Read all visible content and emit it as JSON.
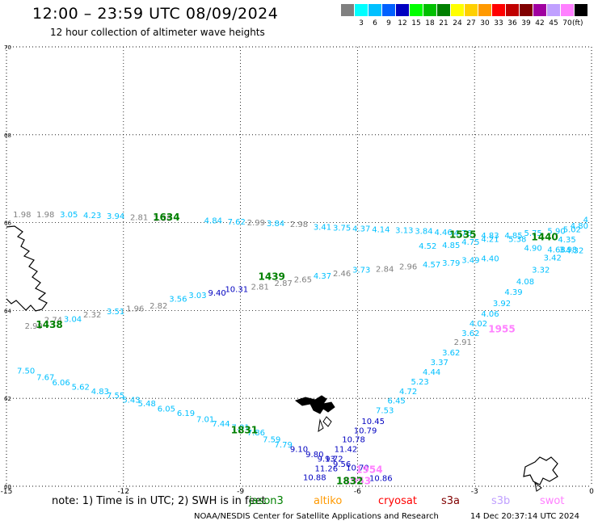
{
  "title": "12:00 – 23:59 UTC 08/09/2024",
  "subtitle": "12 hour collection of altimeter wave heights",
  "color_scale": {
    "unit": "(ft)",
    "steps": [
      {
        "color": "#808080",
        "label": ""
      },
      {
        "color": "#00ffff",
        "label": "3"
      },
      {
        "color": "#00c0ff",
        "label": "6"
      },
      {
        "color": "#0060ff",
        "label": "9"
      },
      {
        "color": "#0000c0",
        "label": "12"
      },
      {
        "color": "#00ff00",
        "label": "15"
      },
      {
        "color": "#00c000",
        "label": "18"
      },
      {
        "color": "#008000",
        "label": "21"
      },
      {
        "color": "#ffff00",
        "label": "24"
      },
      {
        "color": "#ffd000",
        "label": "27"
      },
      {
        "color": "#ff9900",
        "label": "30"
      },
      {
        "color": "#ff0000",
        "label": "33"
      },
      {
        "color": "#c00000",
        "label": "36"
      },
      {
        "color": "#800000",
        "label": "39"
      },
      {
        "color": "#a000a0",
        "label": "42"
      },
      {
        "color": "#c0a0ff",
        "label": "45"
      },
      {
        "color": "#ff80ff",
        "label": "70"
      },
      {
        "color": "#000000",
        "label": ""
      }
    ]
  },
  "axes": {
    "x_ticks": [
      "-15",
      "-12",
      "-9",
      "-6",
      "-3",
      "0"
    ],
    "y_ticks": [
      "70",
      "68",
      "66",
      "64",
      "62",
      "60"
    ]
  },
  "passes": [
    {
      "time": "1634",
      "color": "#008000",
      "lon": -10.9,
      "lat": 66.05
    },
    {
      "time": "1535",
      "color": "#008000",
      "lon": -3.3,
      "lat": 65.65
    },
    {
      "time": "1440",
      "color": "#008000",
      "lon": -1.2,
      "lat": 65.6
    },
    {
      "time": "1439",
      "color": "#008000",
      "lon": -8.2,
      "lat": 64.7
    },
    {
      "time": "1438",
      "color": "#008000",
      "lon": -13.9,
      "lat": 63.6
    },
    {
      "time": "1831",
      "color": "#008000",
      "lon": -8.9,
      "lat": 61.2
    },
    {
      "time": "1955",
      "color": "#ff80ff",
      "lon": -2.3,
      "lat": 63.5
    },
    {
      "time": "1954",
      "color": "#ff80ff",
      "lon": -5.7,
      "lat": 60.3
    },
    {
      "time": "1953",
      "color": "#ff80ff",
      "lon": -6.0,
      "lat": 60.05
    },
    {
      "time": "1832",
      "color": "#008000",
      "lon": -6.2,
      "lat": 60.05
    }
  ],
  "tracks": [
    {
      "name": "track-1634",
      "points": [
        {
          "lon": -14.6,
          "lat": 66.12,
          "v": "1.98",
          "c": "#808080"
        },
        {
          "lon": -14.0,
          "lat": 66.12,
          "v": "1.98",
          "c": "#808080"
        },
        {
          "lon": -13.4,
          "lat": 66.12,
          "v": "3.05",
          "c": "#00c0ff"
        },
        {
          "lon": -12.8,
          "lat": 66.1,
          "v": "4.23",
          "c": "#00c0ff"
        },
        {
          "lon": -12.2,
          "lat": 66.08,
          "v": "3.94",
          "c": "#00c0ff"
        },
        {
          "lon": -11.6,
          "lat": 66.06,
          "v": "2.81",
          "c": "#808080"
        },
        {
          "lon": -11.0,
          "lat": 66.04,
          "v": "2.38",
          "c": "#808080"
        },
        {
          "lon": -9.7,
          "lat": 65.98,
          "v": "4.84",
          "c": "#00c0ff"
        },
        {
          "lon": -9.1,
          "lat": 65.96,
          "v": "7.62",
          "c": "#00c0ff"
        },
        {
          "lon": -8.6,
          "lat": 65.94,
          "v": "2.99",
          "c": "#808080"
        },
        {
          "lon": -8.1,
          "lat": 65.92,
          "v": "3.84",
          "c": "#00c0ff"
        },
        {
          "lon": -7.5,
          "lat": 65.9,
          "v": "2.98",
          "c": "#808080"
        },
        {
          "lon": -6.9,
          "lat": 65.84,
          "v": "3.41",
          "c": "#00c0ff"
        },
        {
          "lon": -6.4,
          "lat": 65.82,
          "v": "3.75",
          "c": "#00c0ff"
        },
        {
          "lon": -5.9,
          "lat": 65.8,
          "v": "4.37",
          "c": "#00c0ff"
        },
        {
          "lon": -5.4,
          "lat": 65.78,
          "v": "4.14",
          "c": "#00c0ff"
        },
        {
          "lon": -4.8,
          "lat": 65.76,
          "v": "3.13",
          "c": "#00c0ff"
        },
        {
          "lon": -4.3,
          "lat": 65.74,
          "v": "3.84",
          "c": "#00c0ff"
        },
        {
          "lon": -3.8,
          "lat": 65.72,
          "v": "4.46",
          "c": "#00c0ff"
        },
        {
          "lon": -3.3,
          "lat": 65.7,
          "v": "4.76",
          "c": "#00c0ff"
        },
        {
          "lon": -2.6,
          "lat": 65.64,
          "v": "4.83",
          "c": "#00c0ff"
        },
        {
          "lon": -2.0,
          "lat": 65.64,
          "v": "4.85",
          "c": "#00c0ff"
        },
        {
          "lon": -1.5,
          "lat": 65.7,
          "v": "5.75",
          "c": "#00c0ff"
        },
        {
          "lon": -0.9,
          "lat": 65.74,
          "v": "5.90",
          "c": "#00c0ff"
        },
        {
          "lon": -0.5,
          "lat": 65.78,
          "v": "5.02",
          "c": "#00c0ff"
        },
        {
          "lon": 0.0,
          "lat": 65.86,
          "v": "4.80",
          "c": "#00c0ff"
        }
      ]
    },
    {
      "name": "track-1535",
      "points": [
        {
          "lon": -4.2,
          "lat": 65.4,
          "v": "4.52",
          "c": "#00c0ff"
        },
        {
          "lon": -3.6,
          "lat": 65.42,
          "v": "4.85",
          "c": "#00c0ff"
        },
        {
          "lon": -3.1,
          "lat": 65.5,
          "v": "4.75",
          "c": "#00c0ff"
        },
        {
          "lon": -2.6,
          "lat": 65.56,
          "v": "4.21",
          "c": "#00c0ff"
        },
        {
          "lon": -1.9,
          "lat": 65.56,
          "v": "5.38",
          "c": "#00c0ff"
        },
        {
          "lon": -1.5,
          "lat": 65.36,
          "v": "4.90",
          "c": "#00c0ff"
        },
        {
          "lon": -0.9,
          "lat": 65.32,
          "v": "4.68",
          "c": "#00c0ff"
        },
        {
          "lon": -0.6,
          "lat": 65.32,
          "v": "3.98",
          "c": "#00c0ff"
        },
        {
          "lon": -0.2,
          "lat": 65.3,
          "v": "4.32",
          "c": "#00c0ff"
        },
        {
          "lon": -0.4,
          "lat": 65.55,
          "v": "4.35",
          "c": "#00c0ff"
        }
      ]
    },
    {
      "name": "track-1439",
      "points": [
        {
          "lon": -14.3,
          "lat": 63.58,
          "v": "2.99",
          "c": "#808080"
        },
        {
          "lon": -13.8,
          "lat": 63.72,
          "v": "2.74",
          "c": "#808080"
        },
        {
          "lon": -13.3,
          "lat": 63.74,
          "v": "3.04",
          "c": "#00c0ff"
        },
        {
          "lon": -12.8,
          "lat": 63.84,
          "v": "2.32",
          "c": "#808080"
        },
        {
          "lon": -12.2,
          "lat": 63.92,
          "v": "3.51",
          "c": "#00c0ff"
        },
        {
          "lon": -11.7,
          "lat": 63.98,
          "v": "1.96",
          "c": "#808080"
        },
        {
          "lon": -11.1,
          "lat": 64.04,
          "v": "2.82",
          "c": "#808080"
        },
        {
          "lon": -10.6,
          "lat": 64.2,
          "v": "3.56",
          "c": "#00c0ff"
        },
        {
          "lon": -10.1,
          "lat": 64.28,
          "v": "3.03",
          "c": "#00c0ff"
        },
        {
          "lon": -9.6,
          "lat": 64.34,
          "v": "9.40",
          "c": "#0000c0"
        },
        {
          "lon": -9.1,
          "lat": 64.42,
          "v": "10.31",
          "c": "#0000c0"
        },
        {
          "lon": -8.5,
          "lat": 64.48,
          "v": "2.81",
          "c": "#808080"
        },
        {
          "lon": -7.9,
          "lat": 64.56,
          "v": "2.87",
          "c": "#808080"
        },
        {
          "lon": -7.4,
          "lat": 64.64,
          "v": "2.65",
          "c": "#808080"
        },
        {
          "lon": -6.9,
          "lat": 64.72,
          "v": "4.37",
          "c": "#00c0ff"
        },
        {
          "lon": -6.4,
          "lat": 64.78,
          "v": "2.46",
          "c": "#808080"
        },
        {
          "lon": -5.9,
          "lat": 64.86,
          "v": "3.73",
          "c": "#00c0ff"
        },
        {
          "lon": -5.3,
          "lat": 64.88,
          "v": "2.84",
          "c": "#808080"
        },
        {
          "lon": -4.7,
          "lat": 64.94,
          "v": "2.96",
          "c": "#808080"
        },
        {
          "lon": -4.1,
          "lat": 64.98,
          "v": "4.57",
          "c": "#00c0ff"
        },
        {
          "lon": -3.6,
          "lat": 65.02,
          "v": "3.79",
          "c": "#00c0ff"
        },
        {
          "lon": -3.1,
          "lat": 65.08,
          "v": "3.49",
          "c": "#00c0ff"
        },
        {
          "lon": -2.6,
          "lat": 65.12,
          "v": "4.40",
          "c": "#00c0ff"
        }
      ]
    },
    {
      "name": "track-1955",
      "points": [
        {
          "lon": -0.0,
          "lat": 66.0,
          "v": "4",
          "c": "#00c0ff"
        },
        {
          "lon": -1.0,
          "lat": 65.14,
          "v": "3.42",
          "c": "#00c0ff"
        },
        {
          "lon": -1.3,
          "lat": 64.86,
          "v": "3.32",
          "c": "#00c0ff"
        },
        {
          "lon": -1.7,
          "lat": 64.6,
          "v": "4.08",
          "c": "#00c0ff"
        },
        {
          "lon": -2.0,
          "lat": 64.36,
          "v": "4.39",
          "c": "#00c0ff"
        },
        {
          "lon": -2.3,
          "lat": 64.1,
          "v": "3.92",
          "c": "#00c0ff"
        },
        {
          "lon": -2.6,
          "lat": 63.86,
          "v": "4.06",
          "c": "#00c0ff"
        },
        {
          "lon": -2.9,
          "lat": 63.64,
          "v": "4.02",
          "c": "#00c0ff"
        },
        {
          "lon": -3.1,
          "lat": 63.42,
          "v": "3.62",
          "c": "#00c0ff"
        },
        {
          "lon": -3.3,
          "lat": 63.22,
          "v": "2.91",
          "c": "#808080"
        },
        {
          "lon": -3.6,
          "lat": 62.98,
          "v": "3.62",
          "c": "#00c0ff"
        },
        {
          "lon": -3.9,
          "lat": 62.76,
          "v": "3.37",
          "c": "#00c0ff"
        },
        {
          "lon": -4.1,
          "lat": 62.54,
          "v": "4.44",
          "c": "#00c0ff"
        },
        {
          "lon": -4.4,
          "lat": 62.32,
          "v": "5.23",
          "c": "#00c0ff"
        },
        {
          "lon": -4.7,
          "lat": 62.1,
          "v": "4.72",
          "c": "#00c0ff"
        },
        {
          "lon": -5.0,
          "lat": 61.88,
          "v": "6.45",
          "c": "#00c0ff"
        },
        {
          "lon": -5.3,
          "lat": 61.66,
          "v": "7.53",
          "c": "#00c0ff"
        },
        {
          "lon": -5.6,
          "lat": 61.42,
          "v": "10.45",
          "c": "#0000c0"
        },
        {
          "lon": -5.8,
          "lat": 61.2,
          "v": "10.79",
          "c": "#0000c0"
        },
        {
          "lon": -6.1,
          "lat": 61.0,
          "v": "10.78",
          "c": "#0000c0"
        },
        {
          "lon": -6.3,
          "lat": 60.78,
          "v": "11.42",
          "c": "#0000c0"
        },
        {
          "lon": -6.6,
          "lat": 60.56,
          "v": "9.72",
          "c": "#0000c0"
        },
        {
          "lon": -6.8,
          "lat": 60.34,
          "v": "11.26",
          "c": "#0000c0"
        },
        {
          "lon": -7.1,
          "lat": 60.14,
          "v": "10.88",
          "c": "#0000c0"
        }
      ]
    },
    {
      "name": "track-1831",
      "points": [
        {
          "lon": -14.5,
          "lat": 62.56,
          "v": "7.50",
          "c": "#00c0ff"
        },
        {
          "lon": -14.0,
          "lat": 62.42,
          "v": "7.67",
          "c": "#00c0ff"
        },
        {
          "lon": -13.6,
          "lat": 62.3,
          "v": "6.06",
          "c": "#00c0ff"
        },
        {
          "lon": -13.1,
          "lat": 62.2,
          "v": "5.62",
          "c": "#00c0ff"
        },
        {
          "lon": -12.6,
          "lat": 62.1,
          "v": "4.83",
          "c": "#00c0ff"
        },
        {
          "lon": -12.2,
          "lat": 62.0,
          "v": "7.55",
          "c": "#00c0ff"
        },
        {
          "lon": -11.8,
          "lat": 61.9,
          "v": "5.43",
          "c": "#00c0ff"
        },
        {
          "lon": -11.4,
          "lat": 61.82,
          "v": "5.48",
          "c": "#00c0ff"
        },
        {
          "lon": -10.9,
          "lat": 61.7,
          "v": "6.05",
          "c": "#00c0ff"
        },
        {
          "lon": -10.4,
          "lat": 61.6,
          "v": "6.19",
          "c": "#00c0ff"
        },
        {
          "lon": -9.9,
          "lat": 61.46,
          "v": "7.01",
          "c": "#00c0ff"
        },
        {
          "lon": -9.5,
          "lat": 61.36,
          "v": "7.44",
          "c": "#00c0ff"
        },
        {
          "lon": -9.0,
          "lat": 61.28,
          "v": "7.01",
          "c": "#00c0ff"
        },
        {
          "lon": -8.6,
          "lat": 61.16,
          "v": "7.86",
          "c": "#00c0ff"
        },
        {
          "lon": -8.2,
          "lat": 61.0,
          "v": "7.59",
          "c": "#00c0ff"
        },
        {
          "lon": -7.9,
          "lat": 60.88,
          "v": "7.79",
          "c": "#00c0ff"
        },
        {
          "lon": -7.5,
          "lat": 60.78,
          "v": "9.10",
          "c": "#0000c0"
        },
        {
          "lon": -7.1,
          "lat": 60.66,
          "v": "9.80",
          "c": "#0000c0"
        },
        {
          "lon": -6.8,
          "lat": 60.56,
          "v": "9.13",
          "c": "#0000c0"
        },
        {
          "lon": -6.4,
          "lat": 60.44,
          "v": "9.56",
          "c": "#0000c0"
        },
        {
          "lon": -6.0,
          "lat": 60.36,
          "v": "10.70",
          "c": "#0000c0"
        },
        {
          "lon": -5.4,
          "lat": 60.12,
          "v": "10.86",
          "c": "#0000c0"
        }
      ]
    }
  ],
  "footer": {
    "note": "note:  1) Time is in UTC; 2) SWH is in feet",
    "missions": [
      {
        "name": "jason3",
        "color": "#008000",
        "left": 308
      },
      {
        "name": "altiko",
        "color": "#ff9900",
        "left": 388
      },
      {
        "name": "cryosat",
        "color": "#ff0000",
        "left": 468
      },
      {
        "name": "s3a",
        "color": "#800000",
        "left": 546
      },
      {
        "name": "s3b",
        "color": "#c0a0ff",
        "left": 608
      },
      {
        "name": "swot",
        "color": "#ff80ff",
        "left": 668
      }
    ],
    "credit": "NOAA/NESDIS Center for Satellite Applications and Research",
    "timestamp": "14 Dec 20:37:14 UTC 2024"
  }
}
